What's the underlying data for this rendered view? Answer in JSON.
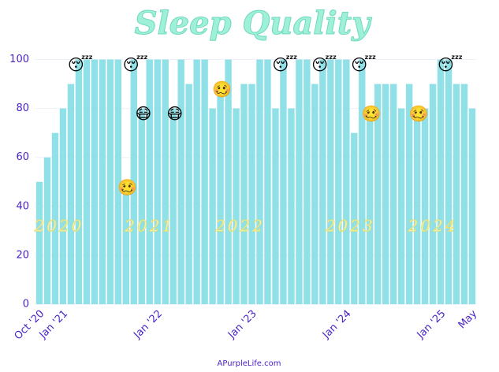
{
  "chart_data": {
    "type": "bar",
    "title": "Sleep Quality",
    "categories": [
      "Oct '20",
      null,
      null,
      "Jan '21",
      null,
      null,
      null,
      null,
      null,
      null,
      null,
      null,
      null,
      null,
      null,
      "Jan '22",
      null,
      null,
      null,
      null,
      null,
      null,
      null,
      null,
      null,
      null,
      null,
      "Jan '23",
      null,
      null,
      null,
      null,
      null,
      null,
      null,
      null,
      null,
      null,
      null,
      "Jan '24",
      null,
      null,
      null,
      null,
      null,
      null,
      null,
      null,
      null,
      null,
      null,
      "Jan '25",
      null,
      null,
      null,
      "May"
    ],
    "values": [
      50,
      60,
      70,
      80,
      90,
      100,
      100,
      100,
      100,
      100,
      100,
      50,
      100,
      80,
      100,
      100,
      100,
      80,
      100,
      90,
      100,
      100,
      80,
      90,
      100,
      80,
      90,
      90,
      100,
      100,
      80,
      100,
      80,
      100,
      100,
      90,
      100,
      100,
      100,
      100,
      70,
      100,
      80,
      90,
      90,
      90,
      80,
      90,
      80,
      80,
      90,
      100,
      100,
      90,
      90,
      80
    ],
    "color": "#8fe1e7",
    "ylim": [
      0,
      105
    ],
    "yticks": [
      0,
      20,
      40,
      60,
      80,
      100
    ],
    "grid": true,
    "annotations": [
      "2020",
      "2021",
      "2022",
      "2023",
      "2024",
      "😴",
      "😴",
      "😴",
      "😴",
      "😴",
      "😴",
      "😷",
      "😷",
      "🥴",
      "🥴",
      "🥴",
      "🥴"
    ],
    "source": "APurpleLife.com"
  }
}
